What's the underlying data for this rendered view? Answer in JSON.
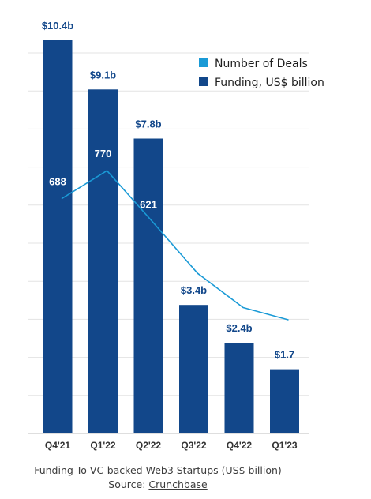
{
  "chart_data": {
    "type": "bar",
    "categories": [
      "Q4'21",
      "Q1'22",
      "Q2'22",
      "Q3'22",
      "Q4'22",
      "Q1'23"
    ],
    "ylim": [
      0,
      10.4
    ],
    "grid": true,
    "legend_position": "top-right",
    "series": [
      {
        "name": "Funding, US$ billion",
        "type": "bar",
        "color": "#12478a",
        "values": [
          10.4,
          9.1,
          7.8,
          3.4,
          2.4,
          1.7
        ],
        "labels": [
          "$10.4b",
          "$9.1b",
          "$7.8b",
          "$3.4b",
          "$2.4b",
          "$1.7"
        ]
      },
      {
        "name": "Number of Deals",
        "type": "line",
        "color": "#1a9ad6",
        "values": [
          688,
          770,
          621,
          469,
          369,
          333
        ],
        "labels": [
          "688",
          "770",
          "621",
          "469",
          "369",
          "333"
        ],
        "ylim": [
          0,
          1150
        ]
      }
    ]
  },
  "caption": {
    "line1": "Funding To VC-backed Web3 Startups (US$ billion)",
    "source_prefix": "Source: ",
    "source_link": "Crunchbase"
  }
}
